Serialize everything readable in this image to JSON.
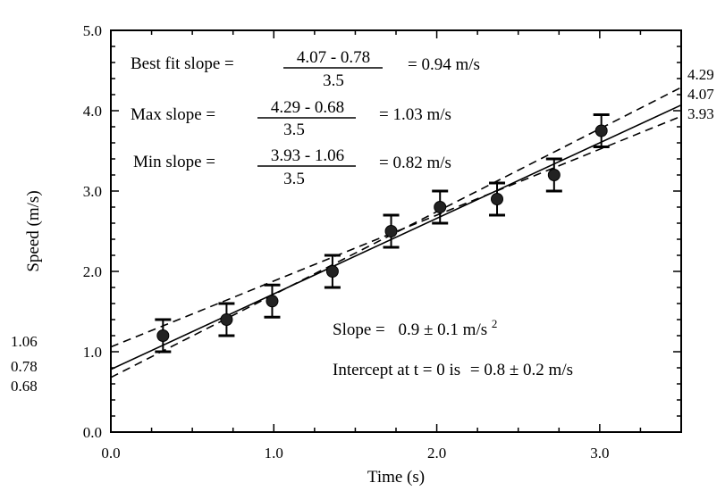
{
  "chart_data": {
    "type": "scatter",
    "xlabel": "Time (s)",
    "ylabel": "Speed (m/s)",
    "xlim": [
      0,
      3.5
    ],
    "ylim": [
      0,
      5
    ],
    "x_ticks": [
      "0.0",
      "1.0",
      "2.0",
      "3.0"
    ],
    "y_ticks": [
      "0.0",
      "1.0",
      "2.0",
      "3.0",
      "4.0",
      "5.0"
    ],
    "grid": false,
    "points": {
      "x": [
        0.32,
        0.71,
        0.99,
        1.36,
        1.72,
        2.02,
        2.37,
        2.72,
        3.01
      ],
      "y": [
        1.2,
        1.4,
        1.63,
        2.0,
        2.5,
        2.8,
        2.9,
        3.2,
        3.75
      ],
      "error": [
        0.2,
        0.2,
        0.2,
        0.2,
        0.2,
        0.2,
        0.2,
        0.2,
        0.2
      ]
    },
    "lines": [
      {
        "label": "best fit",
        "style": "solid",
        "x": [
          0,
          3.5
        ],
        "y": [
          0.78,
          4.07
        ]
      },
      {
        "label": "max slope",
        "style": "dashed",
        "x": [
          0,
          3.5
        ],
        "y": [
          0.68,
          4.29
        ]
      },
      {
        "label": "min slope",
        "style": "dashed",
        "x": [
          0,
          3.5
        ],
        "y": [
          1.06,
          3.93
        ]
      }
    ],
    "left_labels": [
      "1.06",
      "0.78",
      "0.68"
    ],
    "right_labels": [
      "4.29",
      "4.07",
      "3.93"
    ],
    "annotations": {
      "best_fit": {
        "label": "Best fit slope =",
        "numerator": "4.07 - 0.78",
        "denominator": "3.5",
        "result": "= 0.94 m/s"
      },
      "max_slope": {
        "label": "Max slope =",
        "numerator": "4.29 - 0.68",
        "denominator": "3.5",
        "result": "= 1.03 m/s"
      },
      "min_slope": {
        "label": "Min slope =",
        "numerator": "3.93 - 1.06",
        "denominator": "3.5",
        "result": "= 0.82 m/s"
      },
      "slope": {
        "label": "Slope =",
        "value": "0.9 ± 0.1 m/s",
        "sup": "2"
      },
      "intercept": {
        "label": "Intercept at t = 0 is",
        "value": "=   0.8 ± 0.2 m/s"
      }
    }
  }
}
